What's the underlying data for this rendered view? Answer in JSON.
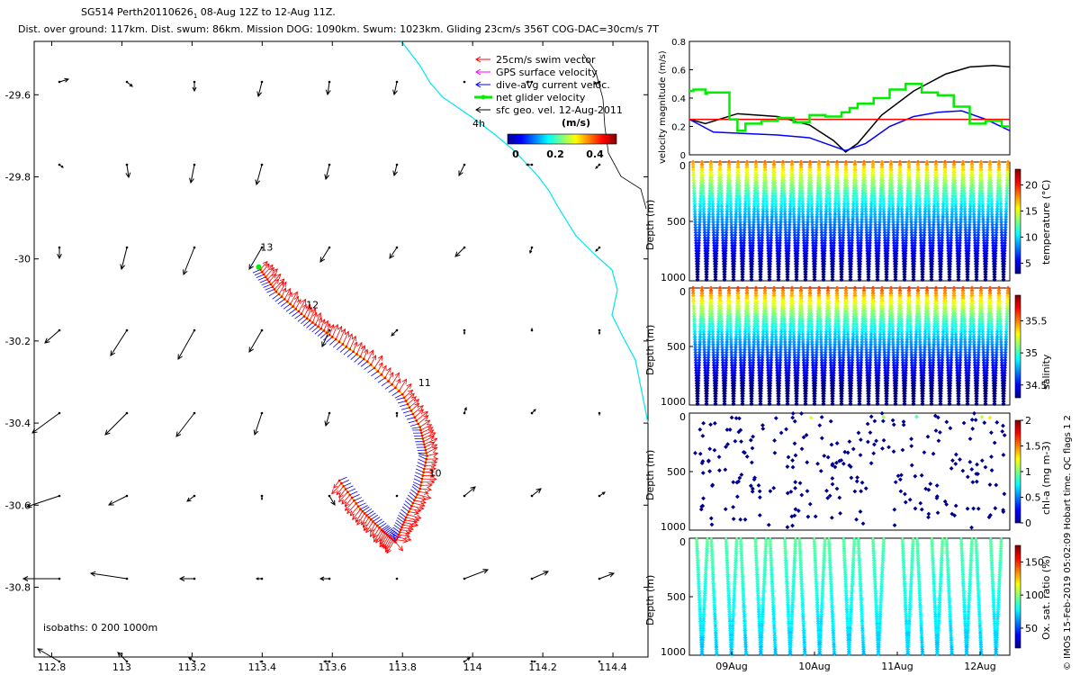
{
  "chart_data": [
    {
      "type": "scatter",
      "name": "glider track map",
      "title_line1": "SG514 Perth20110626",
      "title_subscript": "1",
      "title_line1b": " 08-Aug 12Z to 12-Aug 11Z.",
      "title_line2": "Dist. over ground: 117km. Dist. swum: 86km. Mission DOG: 1090km. Swum: 1023km. Gliding 23cm/s 356T COG-DAC=30cm/s 7T",
      "xlim": [
        112.75,
        114.5
      ],
      "ylim": [
        -30.97,
        -29.47
      ],
      "x_ticks": [
        "112.8",
        "113",
        "113.2",
        "113.4",
        "113.6",
        "113.8",
        "114",
        "114.2",
        "114.4"
      ],
      "y_ticks": [
        "-29.6",
        "-29.8",
        "-30",
        "-30.2",
        "-30.4",
        "-30.6",
        "-30.8"
      ],
      "legend": [
        {
          "label": "25cm/s swim vector",
          "color": "#ff0000"
        },
        {
          "label": "GPS surface velocity",
          "color": "#ff00ff"
        },
        {
          "label": "dive-avg current veloc.",
          "color": "#0000ff"
        },
        {
          "label": "net glider velocity",
          "color": "#00ee00"
        },
        {
          "label": "sfc geo. vel. 12-Aug-2011",
          "color": "#000000"
        }
      ],
      "colorbar_title": "(m/s)",
      "colorbar_ticks": [
        "0",
        "0.2",
        "0.4"
      ],
      "contour_label": "4h",
      "isobath_text": "isobaths: 0   200  1000m",
      "day_labels": [
        {
          "label": "13",
          "x": 113.39,
          "y": -29.98
        },
        {
          "label": "12",
          "x": 113.52,
          "y": -30.12
        },
        {
          "label": "11",
          "x": 113.84,
          "y": -30.31
        },
        {
          "label": "10",
          "x": 113.87,
          "y": -30.53
        }
      ],
      "track": [
        [
          113.62,
          -30.54
        ],
        [
          113.68,
          -30.61
        ],
        [
          113.74,
          -30.66
        ],
        [
          113.78,
          -30.69
        ],
        [
          113.81,
          -30.63
        ],
        [
          113.85,
          -30.56
        ],
        [
          113.87,
          -30.48
        ],
        [
          113.85,
          -30.41
        ],
        [
          113.8,
          -30.33
        ],
        [
          113.7,
          -30.25
        ],
        [
          113.6,
          -30.19
        ],
        [
          113.52,
          -30.14
        ],
        [
          113.44,
          -30.08
        ],
        [
          113.39,
          -30.02
        ]
      ]
    },
    {
      "type": "line",
      "name": "velocity magnitude",
      "ylabel": "velocity magnitude (m/s)",
      "ylim": [
        0,
        0.8
      ],
      "y_ticks": [
        "0",
        "0.2",
        "0.4",
        "0.6",
        "0.8"
      ],
      "xlim": [
        8.5,
        12.5
      ],
      "series": [
        {
          "name": "surface geostrophic (black)",
          "color": "#000000",
          "x": [
            8.5,
            8.7,
            9.1,
            9.6,
            10.0,
            10.3,
            10.45,
            10.6,
            10.9,
            11.3,
            11.7,
            12.0,
            12.3,
            12.5
          ],
          "y": [
            0.25,
            0.22,
            0.29,
            0.27,
            0.21,
            0.1,
            0.02,
            0.08,
            0.28,
            0.45,
            0.57,
            0.62,
            0.63,
            0.62
          ]
        },
        {
          "name": "dive-avg current (blue)",
          "color": "#0000ff",
          "x": [
            8.5,
            8.8,
            9.2,
            9.6,
            10.0,
            10.2,
            10.45,
            10.7,
            11.0,
            11.3,
            11.6,
            11.9,
            12.2,
            12.5
          ],
          "y": [
            0.25,
            0.16,
            0.15,
            0.14,
            0.12,
            0.08,
            0.03,
            0.08,
            0.2,
            0.27,
            0.3,
            0.31,
            0.25,
            0.17
          ]
        },
        {
          "name": "GPS/glider speed (red)",
          "color": "#ff0000",
          "x": [
            8.5,
            12.5
          ],
          "y": [
            0.25,
            0.25
          ]
        },
        {
          "name": "net glider velocity (green)",
          "color": "#00ee00",
          "x": [
            8.5,
            8.55,
            8.7,
            8.72,
            8.9,
            9.0,
            9.1,
            9.2,
            9.4,
            9.6,
            9.8,
            10.0,
            10.2,
            10.4,
            10.5,
            10.6,
            10.8,
            11.0,
            11.2,
            11.4,
            11.6,
            11.8,
            12.0,
            12.2,
            12.4
          ],
          "y": [
            0.45,
            0.46,
            0.43,
            0.44,
            0.44,
            0.25,
            0.17,
            0.22,
            0.24,
            0.26,
            0.23,
            0.28,
            0.27,
            0.3,
            0.33,
            0.36,
            0.4,
            0.46,
            0.5,
            0.44,
            0.42,
            0.34,
            0.22,
            0.24,
            0.2
          ]
        }
      ]
    },
    {
      "type": "scatter",
      "name": "temperature section",
      "ylabel": "Depth (m)",
      "y_ticks": [
        "0",
        "500",
        "1000"
      ],
      "ylim": [
        1000,
        0
      ],
      "colorbar_label": "temperature (°C)",
      "colorbar_ticks": [
        "5",
        "10",
        "15",
        "20"
      ],
      "clim": [
        3,
        23
      ],
      "profiles": 35,
      "max_depth": 990
    },
    {
      "type": "scatter",
      "name": "salinity section",
      "ylabel": "Depth (m)",
      "y_ticks": [
        "0",
        "500",
        "1000"
      ],
      "ylim": [
        1000,
        0
      ],
      "colorbar_label": "salinity",
      "colorbar_ticks": [
        "34.5",
        "35",
        "35.5"
      ],
      "clim": [
        34.3,
        35.9
      ],
      "profiles": 35,
      "max_depth": 990
    },
    {
      "type": "scatter",
      "name": "chlorophyll section",
      "ylabel": "Depth (m)",
      "y_ticks": [
        "0",
        "500",
        "1000"
      ],
      "ylim": [
        1000,
        0
      ],
      "colorbar_label": "chl-a (mg m-3)",
      "colorbar_ticks": [
        "0",
        "0.5",
        "1",
        "1.5",
        "2"
      ],
      "clim": [
        0,
        2
      ]
    },
    {
      "type": "scatter",
      "name": "oxygen section",
      "ylabel": "Depth (m)",
      "y_ticks": [
        "0",
        "500",
        "1000"
      ],
      "ylim": [
        1000,
        0
      ],
      "colorbar_label": "Ox. sat. ratio (%)",
      "colorbar_ticks": [
        "50",
        "100",
        "150"
      ],
      "clim": [
        20,
        175
      ],
      "x_ticks": [
        "09Aug",
        "10Aug",
        "11Aug",
        "12Aug"
      ],
      "profiles": 21
    }
  ],
  "side_label": "© IMOS 15-Feb-2019 05:02:09 Hobart time. QC flags 1  2",
  "colors": {
    "track_red": "#ff0000",
    "track_blue": "#0000ff",
    "net_green": "#00ee00",
    "coast": "#00e5ee"
  }
}
